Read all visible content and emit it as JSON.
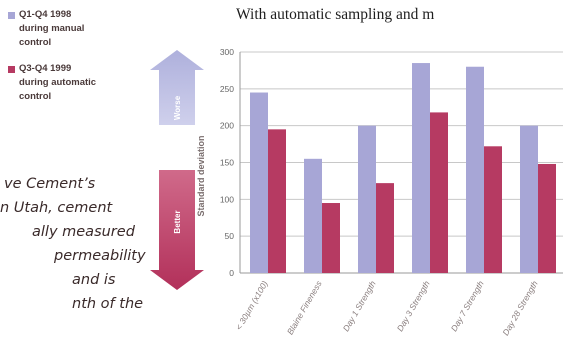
{
  "legend": [
    {
      "label": "Q1-Q4 1998\nduring manual\ncontrol",
      "color": "#a7a6d6"
    },
    {
      "label": "Q3-Q4 1999\nduring automatic\ncontrol",
      "color": "#b63a62"
    }
  ],
  "body_text": [
    "ve Cement’s",
    "n Utah, cement",
    "ally measured",
    "permeability",
    "and is",
    "nth of the"
  ],
  "chart_data": {
    "type": "bar",
    "title": "With automatic sampling and m",
    "ylabel": "Standard deviation",
    "arrow_up_label": "Worse",
    "arrow_down_label": "Better",
    "ylim": [
      0,
      300
    ],
    "yticks": [
      0,
      50,
      100,
      150,
      200,
      250,
      300
    ],
    "grid": true,
    "categories": [
      "< 30µm (x100)",
      "Blaine Fineness",
      "Day 1 Strength",
      "Day 3 Strength",
      "Day 7 Strength",
      "Day 28 Strength"
    ],
    "series": [
      {
        "name": "Q1-Q4 1998 during manual control",
        "color": "#a7a6d6",
        "values": [
          245,
          155,
          200,
          285,
          280,
          200
        ]
      },
      {
        "name": "Q3-Q4 1999 during automatic control",
        "color": "#b63a62",
        "values": [
          195,
          95,
          122,
          218,
          172,
          148
        ]
      }
    ]
  }
}
